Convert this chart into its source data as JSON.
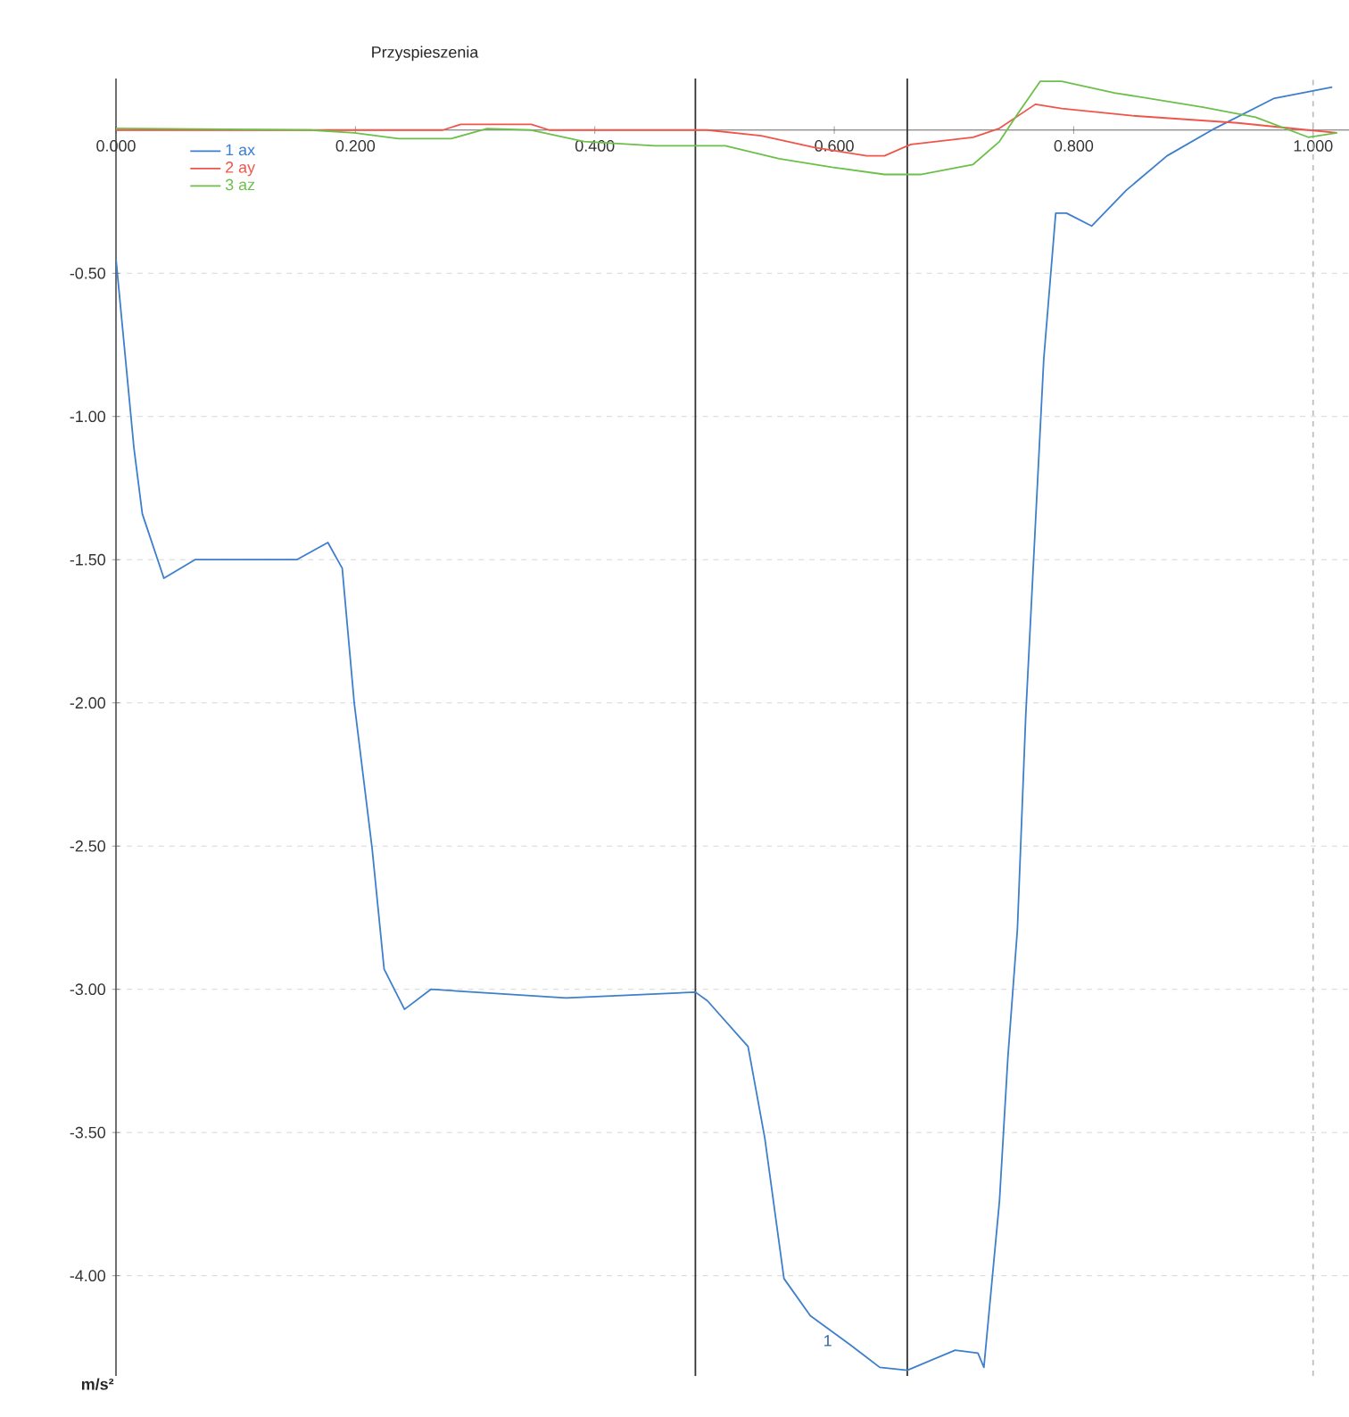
{
  "chart_data": {
    "type": "line",
    "title": "Przyspieszenia",
    "ylabel": "m/s²",
    "xlim": [
      0,
      1.03
    ],
    "ylim": [
      -4.35,
      0.18
    ],
    "xticks": [
      {
        "value": 0,
        "label": "0.000"
      },
      {
        "value": 0.2,
        "label": "0.200"
      },
      {
        "value": 0.4,
        "label": "0.400"
      },
      {
        "value": 0.6,
        "label": "0.600"
      },
      {
        "value": 0.8,
        "label": "0.800"
      },
      {
        "value": 1.0,
        "label": "1.000"
      }
    ],
    "yticks": [
      {
        "value": -4.0,
        "label": "-4.00"
      },
      {
        "value": -3.5,
        "label": "-3.50"
      },
      {
        "value": -3.0,
        "label": "-3.00"
      },
      {
        "value": -2.5,
        "label": "-2.50"
      },
      {
        "value": -2.0,
        "label": "-2.00"
      },
      {
        "value": -1.5,
        "label": "-1.50"
      },
      {
        "value": -1.0,
        "label": "-1.00"
      },
      {
        "value": -0.5,
        "label": "-0.50"
      }
    ],
    "grid": "y",
    "legend": "top left",
    "series": [
      {
        "name": "1 ax",
        "color": "#3d7fcc",
        "x": [
          0.0,
          0.015,
          0.022,
          0.04,
          0.066,
          0.151,
          0.177,
          0.189,
          0.199,
          0.214,
          0.224,
          0.241,
          0.263,
          0.376,
          0.484,
          0.494,
          0.528,
          0.542,
          0.558,
          0.58,
          0.613,
          0.638,
          0.661,
          0.701,
          0.72,
          0.725,
          0.738,
          0.745,
          0.753,
          0.76,
          0.775,
          0.785,
          0.794,
          0.815,
          0.844,
          0.878,
          0.918,
          0.967,
          1.016
        ],
        "values": [
          -0.45,
          -1.11,
          -1.34,
          -1.565,
          -1.5,
          -1.5,
          -1.44,
          -1.53,
          -2.0,
          -2.51,
          -2.93,
          -3.07,
          -3.0,
          -3.03,
          -3.01,
          -3.04,
          -3.2,
          -3.52,
          -4.01,
          -4.14,
          -4.24,
          -4.32,
          -4.33,
          -4.26,
          -4.27,
          -4.32,
          -3.74,
          -3.24,
          -2.79,
          -2.04,
          -0.8,
          -0.29,
          -0.29,
          -0.335,
          -0.21,
          -0.09,
          0.006,
          0.11,
          0.15
        ]
      },
      {
        "name": "2 ay",
        "color": "#f0554a",
        "x": [
          0.0,
          0.273,
          0.288,
          0.347,
          0.362,
          0.494,
          0.539,
          0.583,
          0.627,
          0.642,
          0.664,
          0.716,
          0.738,
          0.768,
          0.79,
          0.849,
          0.937,
          0.996,
          1.02
        ],
        "values": [
          0,
          0,
          0.02,
          0.02,
          0,
          0,
          -0.02,
          -0.06,
          -0.09,
          -0.09,
          -0.05,
          -0.025,
          0.006,
          0.09,
          0.075,
          0.05,
          0.025,
          0,
          -0.01
        ]
      },
      {
        "name": "3 az",
        "color": "#6cc04a",
        "x": [
          0.0,
          0.162,
          0.199,
          0.236,
          0.28,
          0.31,
          0.347,
          0.391,
          0.45,
          0.509,
          0.554,
          0.598,
          0.642,
          0.672,
          0.716,
          0.738,
          0.753,
          0.772,
          0.79,
          0.834,
          0.908,
          0.952,
          0.996,
          1.02
        ],
        "values": [
          0.006,
          0,
          -0.01,
          -0.03,
          -0.03,
          0.005,
          0,
          -0.04,
          -0.055,
          -0.055,
          -0.1,
          -0.13,
          -0.155,
          -0.155,
          -0.12,
          -0.04,
          0.055,
          0.17,
          0.17,
          0.13,
          0.08,
          0.045,
          -0.025,
          -0.01
        ]
      }
    ],
    "ref_lines": [
      {
        "axis": "x",
        "value": 0.484,
        "color": "#333333",
        "line_style": "solid"
      },
      {
        "axis": "x",
        "value": 0.661,
        "color": "#333333",
        "line_style": "solid"
      },
      {
        "axis": "x",
        "value": 1.0,
        "color": "#c0c0c0",
        "line_style": "dashed"
      }
    ],
    "annotations": [
      {
        "text": "1",
        "x": 0.6,
        "y": -4.2
      }
    ]
  }
}
